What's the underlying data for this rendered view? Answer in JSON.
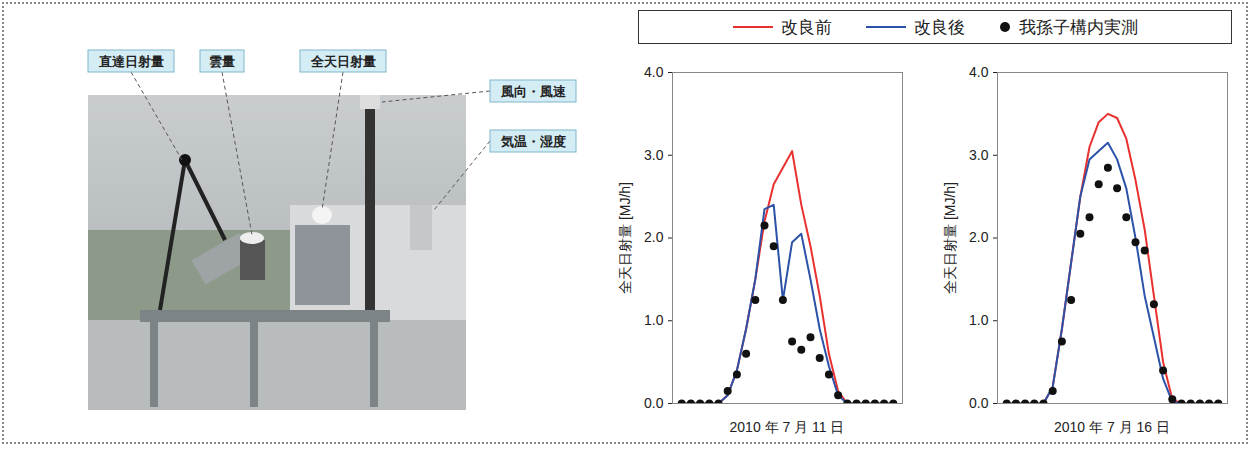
{
  "photo": {
    "labels": [
      "直達日射量",
      "雲量",
      "全天日射量",
      "風向・風速",
      "気温・湿度"
    ]
  },
  "chart_data": [
    {
      "type": "line",
      "x_label": "2010 年 7 月 11 日",
      "y_label": "全天日射量 [MJ/h]",
      "x": [
        0,
        1,
        2,
        3,
        4,
        5,
        6,
        7,
        8,
        9,
        10,
        11,
        12,
        13,
        14,
        15,
        16,
        17,
        18,
        19,
        20,
        21,
        22,
        23
      ],
      "xlim": [
        -1,
        24
      ],
      "ylim": [
        0,
        4
      ],
      "yticks": [
        0,
        1,
        2,
        3,
        4
      ],
      "tick_labels": "y",
      "legend": "top",
      "series": [
        {
          "name": "改良前",
          "color": "#e8312f",
          "type": "line",
          "line_style": "solid",
          "values": [
            0,
            0,
            0,
            0,
            0,
            0.1,
            0.4,
            0.9,
            1.5,
            2.2,
            2.65,
            2.85,
            3.05,
            2.4,
            1.9,
            1.3,
            0.6,
            0.15,
            0,
            0,
            0,
            0,
            0,
            0
          ]
        },
        {
          "name": "改良後",
          "color": "#2c52a8",
          "type": "line",
          "line_style": "solid",
          "values": [
            0,
            0,
            0,
            0,
            0,
            0.1,
            0.4,
            0.9,
            1.5,
            2.35,
            2.4,
            1.25,
            1.95,
            2.05,
            1.5,
            0.9,
            0.45,
            0.1,
            0,
            0,
            0,
            0,
            0,
            0
          ]
        },
        {
          "name": "我孫子構内実測",
          "color": "#111111",
          "type": "scatter",
          "marker": "circle",
          "values": [
            0,
            0,
            0,
            0,
            0,
            0.15,
            0.35,
            0.6,
            1.25,
            2.15,
            1.9,
            1.25,
            0.75,
            0.65,
            0.8,
            0.55,
            0.35,
            0.1,
            0,
            0,
            0,
            0,
            0,
            0
          ]
        }
      ]
    },
    {
      "type": "line",
      "x_label": "2010 年 7 月 16 日",
      "y_label": "全天日射量 [MJ/h]",
      "x": [
        0,
        1,
        2,
        3,
        4,
        5,
        6,
        7,
        8,
        9,
        10,
        11,
        12,
        13,
        14,
        15,
        16,
        17,
        18,
        19,
        20,
        21,
        22,
        23
      ],
      "xlim": [
        -1,
        24
      ],
      "ylim": [
        0,
        4
      ],
      "yticks": [
        0,
        1,
        2,
        3,
        4
      ],
      "tick_labels": "y",
      "legend": "top",
      "series": [
        {
          "name": "改良前",
          "color": "#e8312f",
          "type": "line",
          "line_style": "solid",
          "values": [
            0,
            0,
            0,
            0,
            0,
            0.2,
            0.9,
            1.7,
            2.5,
            3.1,
            3.4,
            3.5,
            3.45,
            3.2,
            2.7,
            2.1,
            1.3,
            0.5,
            0.05,
            0,
            0,
            0,
            0,
            0
          ]
        },
        {
          "name": "改良後",
          "color": "#2c52a8",
          "type": "line",
          "line_style": "solid",
          "values": [
            0,
            0,
            0,
            0,
            0,
            0.2,
            0.9,
            1.7,
            2.5,
            2.95,
            3.05,
            3.15,
            2.95,
            2.6,
            2.0,
            1.3,
            0.8,
            0.3,
            0.02,
            0,
            0,
            0,
            0,
            0
          ]
        },
        {
          "name": "我孫子構内実測",
          "color": "#111111",
          "type": "scatter",
          "marker": "circle",
          "values": [
            0,
            0,
            0,
            0,
            0,
            0.15,
            0.75,
            1.25,
            2.05,
            2.25,
            2.65,
            2.85,
            2.6,
            2.25,
            1.95,
            1.85,
            1.2,
            0.4,
            0.05,
            0,
            0,
            0,
            0,
            0
          ]
        }
      ]
    }
  ]
}
